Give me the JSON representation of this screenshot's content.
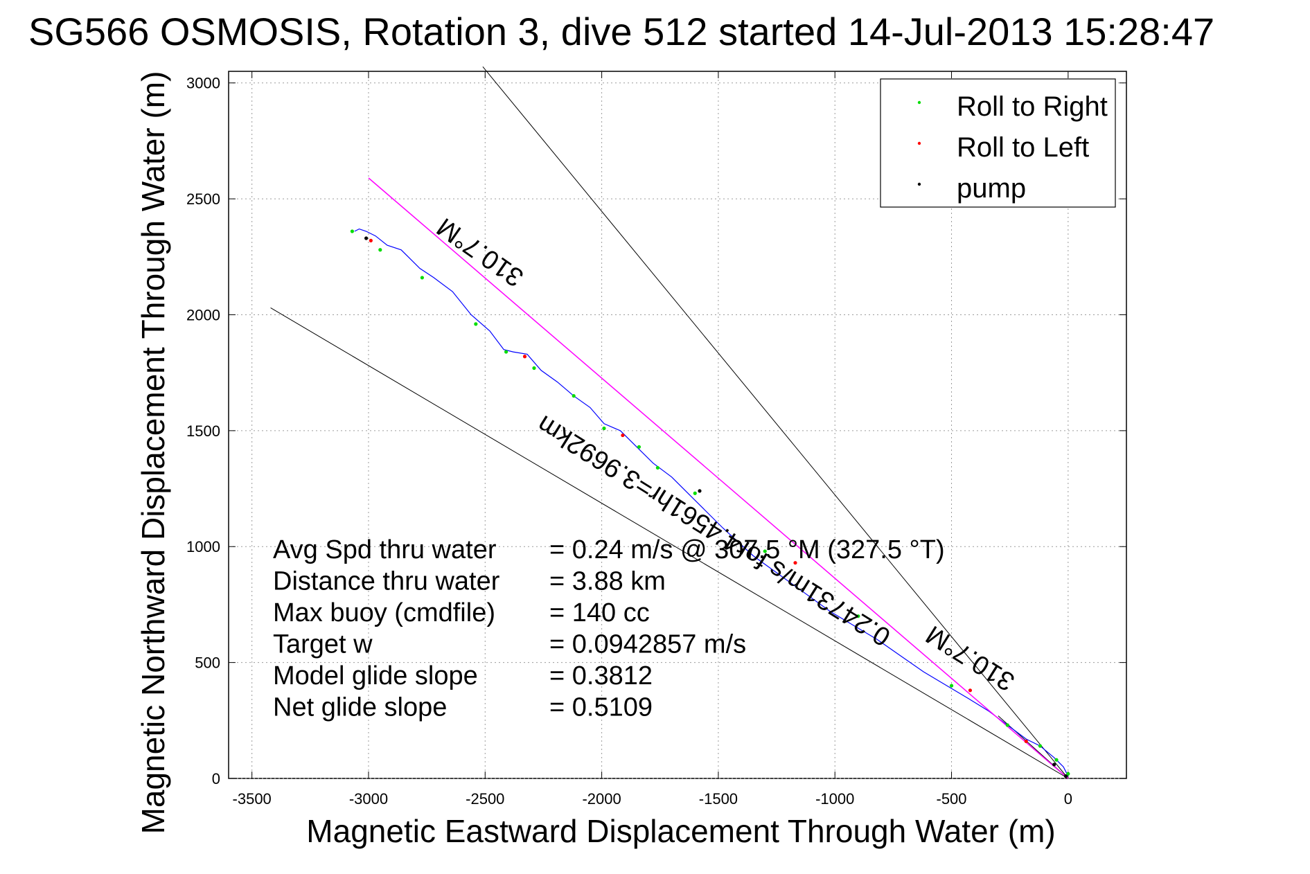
{
  "chart_data": {
    "type": "line",
    "title": "SG566 OSMOSIS, Rotation 3, dive 512 started 14-Jul-2013 15:28:47",
    "xlabel": "Magnetic Eastward Displacement Through Water (m)",
    "ylabel": "Magnetic Northward Displacement Through Water (m)",
    "xlim": [
      -3600,
      250
    ],
    "ylim": [
      0,
      3050
    ],
    "xticks": [
      -3500,
      -3000,
      -2500,
      -2000,
      -1500,
      -1000,
      -500,
      0
    ],
    "yticks": [
      0,
      500,
      1000,
      1500,
      2000,
      2500,
      3000
    ],
    "grid": true,
    "legend_position": "top-right",
    "legend": [
      {
        "label": "Roll to Right",
        "color": "#00dd00"
      },
      {
        "label": "Roll to Left",
        "color": "#ff0000"
      },
      {
        "label": "pump",
        "color": "#000000"
      }
    ],
    "series": [
      {
        "name": "",
        "color": "#0000ff",
        "x": [
          0,
          -20,
          -60,
          -120,
          -180,
          -260,
          -340,
          -420,
          -520,
          -620,
          -720,
          -820,
          -920,
          -1020,
          -1130,
          -1240,
          -1350,
          -1480,
          -1600,
          -1700,
          -1780,
          -1850,
          -1920,
          -1990,
          -2050,
          -2120,
          -2190,
          -2260,
          -2320,
          -2380,
          -2420,
          -2480,
          -2560,
          -2640,
          -2720,
          -2780,
          -2860,
          -2920,
          -2970,
          -3010,
          -3040,
          -3060
        ],
        "y": [
          10,
          50,
          90,
          140,
          170,
          230,
          290,
          340,
          400,
          460,
          530,
          600,
          660,
          720,
          800,
          880,
          960,
          1080,
          1200,
          1300,
          1360,
          1430,
          1500,
          1530,
          1600,
          1650,
          1710,
          1760,
          1830,
          1840,
          1850,
          1930,
          2000,
          2100,
          2160,
          2200,
          2280,
          2300,
          2340,
          2360,
          2370,
          2360
        ]
      },
      {
        "name": "",
        "color": "#ff00ff",
        "x": [
          0,
          -3000
        ],
        "y": [
          0,
          2590
        ]
      }
    ],
    "roll_right_points": {
      "x": [
        0,
        -50,
        -120,
        -260,
        -500,
        -900,
        -1300,
        -1600,
        -1760,
        -1840,
        -1990,
        -2120,
        -2290,
        -2410,
        -2540,
        -2770,
        -2950,
        -3070
      ],
      "y": [
        20,
        80,
        140,
        230,
        400,
        700,
        980,
        1230,
        1340,
        1430,
        1510,
        1650,
        1770,
        1840,
        1960,
        2160,
        2280,
        2360
      ]
    },
    "roll_left_points": {
      "x": [
        -180,
        -420,
        -1170,
        -1910,
        -2330,
        -2990
      ],
      "y": [
        160,
        380,
        930,
        1480,
        1820,
        2320
      ]
    },
    "pump_points": {
      "x": [
        -10,
        -60,
        -1580,
        -3010
      ],
      "y": [
        10,
        60,
        1240,
        2330
      ]
    },
    "reference_lines": [
      {
        "x": [
          0,
          -2510
        ],
        "y": [
          0,
          3070
        ]
      },
      {
        "x": [
          0,
          -3420
        ],
        "y": [
          0,
          2030
        ]
      },
      {
        "x": [
          0,
          -300
        ],
        "y": [
          0,
          270
        ]
      }
    ],
    "annotations": [
      {
        "text": "310.7°M",
        "x": -2500,
        "y": 2300
      },
      {
        "text": "0.24731m/s for4.4561hr=3.9692km",
        "x": -1500,
        "y": 1100
      },
      {
        "text": "310.7°M",
        "x": -400,
        "y": 550
      }
    ],
    "stats": [
      {
        "label": "Avg Spd thru water",
        "value": "=  0.24 m/s @  307.5 °M (327.5 °T)"
      },
      {
        "label": "Distance thru water",
        "value": "=  3.88 km"
      },
      {
        "label": "Max buoy (cmdfile)",
        "value": "= 140 cc"
      },
      {
        "label": "Target w",
        "value": "= 0.0942857 m/s"
      },
      {
        "label": "Model glide slope",
        "value": "= 0.3812"
      },
      {
        "label": "Net glide slope",
        "value": "= 0.5109"
      }
    ]
  }
}
